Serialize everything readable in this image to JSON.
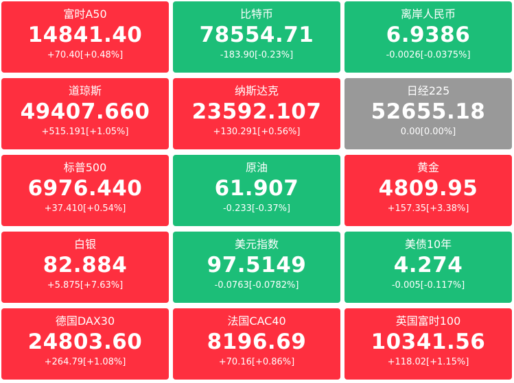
{
  "colors": {
    "up": "#fe2f3f",
    "down": "#1cbe78",
    "flat": "#999999",
    "text": "#ffffff"
  },
  "tiles": [
    {
      "name": "富时A50",
      "price": "14841.40",
      "change": "+70.40[+0.48%]",
      "status": "up"
    },
    {
      "name": "比特币",
      "price": "78554.71",
      "change": "-183.90[-0.23%]",
      "status": "down"
    },
    {
      "name": "离岸人民币",
      "price": "6.9386",
      "change": "-0.0026[-0.0375%]",
      "status": "down"
    },
    {
      "name": "道琼斯",
      "price": "49407.660",
      "change": "+515.191[+1.05%]",
      "status": "up"
    },
    {
      "name": "纳斯达克",
      "price": "23592.107",
      "change": "+130.291[+0.56%]",
      "status": "up"
    },
    {
      "name": "日经225",
      "price": "52655.18",
      "change": "0.00[0.00%]",
      "status": "flat"
    },
    {
      "name": "标普500",
      "price": "6976.440",
      "change": "+37.410[+0.54%]",
      "status": "up"
    },
    {
      "name": "原油",
      "price": "61.907",
      "change": "-0.233[-0.37%]",
      "status": "down"
    },
    {
      "name": "黄金",
      "price": "4809.95",
      "change": "+157.35[+3.38%]",
      "status": "up"
    },
    {
      "name": "白银",
      "price": "82.884",
      "change": "+5.875[+7.63%]",
      "status": "up"
    },
    {
      "name": "美元指数",
      "price": "97.5149",
      "change": "-0.0763[-0.0782%]",
      "status": "down"
    },
    {
      "name": "美债10年",
      "price": "4.274",
      "change": "-0.005[-0.117%]",
      "status": "down"
    },
    {
      "name": "德国DAX30",
      "price": "24803.60",
      "change": "+264.79[+1.08%]",
      "status": "up"
    },
    {
      "name": "法国CAC40",
      "price": "8196.69",
      "change": "+70.16[+0.86%]",
      "status": "up"
    },
    {
      "name": "英国富时100",
      "price": "10341.56",
      "change": "+118.02[+1.15%]",
      "status": "up"
    }
  ]
}
